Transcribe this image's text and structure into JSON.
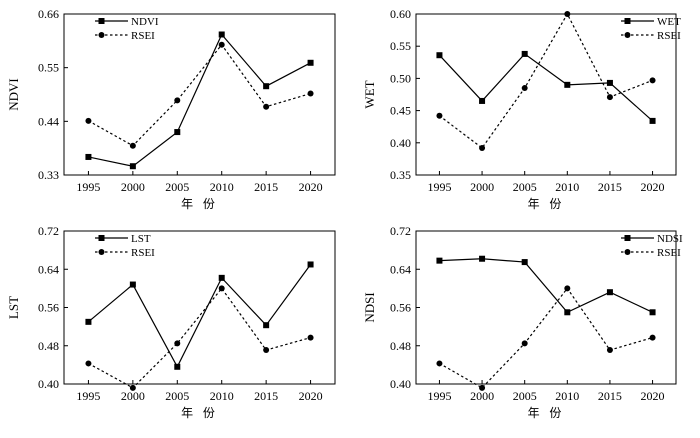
{
  "chart_data": [
    {
      "type": "line",
      "ylabel": "NDVI",
      "xlabel": "年 份",
      "categories": [
        "1995",
        "2000",
        "2005",
        "2010",
        "2015",
        "2020"
      ],
      "ylim": [
        0.33,
        0.66
      ],
      "yticks": [
        "0.33",
        "0.44",
        "0.55",
        "0.66"
      ],
      "series": [
        {
          "name": "NDVI",
          "marker": "square",
          "dashed": false,
          "values": [
            0.367,
            0.348,
            0.418,
            0.618,
            0.512,
            0.56
          ]
        },
        {
          "name": "RSEI",
          "marker": "circle",
          "dashed": true,
          "values": [
            0.441,
            0.39,
            0.483,
            0.597,
            0.47,
            0.497
          ]
        }
      ]
    },
    {
      "type": "line",
      "ylabel": "WET",
      "xlabel": "年 份",
      "categories": [
        "1995",
        "2000",
        "2005",
        "2010",
        "2015",
        "2020"
      ],
      "ylim": [
        0.35,
        0.6
      ],
      "yticks": [
        "0.35",
        "0.40",
        "0.45",
        "0.50",
        "0.55",
        "0.60"
      ],
      "series": [
        {
          "name": "WET",
          "marker": "square",
          "dashed": false,
          "values": [
            0.536,
            0.465,
            0.538,
            0.49,
            0.493,
            0.434
          ]
        },
        {
          "name": "RSEI",
          "marker": "circle",
          "dashed": true,
          "values": [
            0.442,
            0.392,
            0.485,
            0.6,
            0.471,
            0.497
          ]
        }
      ]
    },
    {
      "type": "line",
      "ylabel": "LST",
      "xlabel": "年 份",
      "categories": [
        "1995",
        "2000",
        "2005",
        "2010",
        "2015",
        "2020"
      ],
      "ylim": [
        0.4,
        0.72
      ],
      "yticks": [
        "0.40",
        "0.48",
        "0.56",
        "0.64",
        "0.72"
      ],
      "series": [
        {
          "name": "LST",
          "marker": "square",
          "dashed": false,
          "values": [
            0.53,
            0.608,
            0.436,
            0.622,
            0.523,
            0.65
          ]
        },
        {
          "name": "RSEI",
          "marker": "circle",
          "dashed": true,
          "values": [
            0.443,
            0.392,
            0.485,
            0.6,
            0.471,
            0.497
          ]
        }
      ]
    },
    {
      "type": "line",
      "ylabel": "NDSI",
      "xlabel": "年 份",
      "categories": [
        "1995",
        "2000",
        "2005",
        "2010",
        "2015",
        "2020"
      ],
      "ylim": [
        0.4,
        0.72
      ],
      "yticks": [
        "0.40",
        "0.48",
        "0.56",
        "0.64",
        "0.72"
      ],
      "series": [
        {
          "name": "NDSI",
          "marker": "square",
          "dashed": false,
          "values": [
            0.658,
            0.662,
            0.655,
            0.55,
            0.592,
            0.55
          ]
        },
        {
          "name": "RSEI",
          "marker": "circle",
          "dashed": true,
          "values": [
            0.443,
            0.392,
            0.485,
            0.6,
            0.471,
            0.497
          ]
        }
      ]
    }
  ]
}
